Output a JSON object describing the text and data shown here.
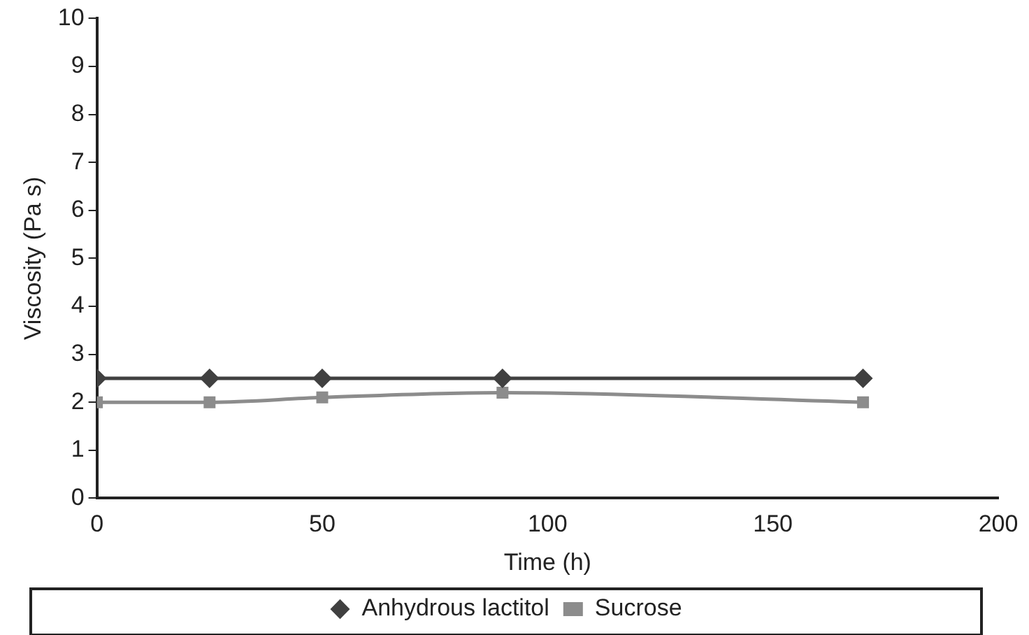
{
  "chart_data": {
    "type": "line",
    "xlabel": "Time (h)",
    "ylabel": "Viscosity (Pa s)",
    "x": [
      0,
      25,
      50,
      90,
      170
    ],
    "xlim": [
      0,
      200
    ],
    "xticks": [
      0,
      50,
      100,
      150,
      200
    ],
    "ylim": [
      0,
      10
    ],
    "yticks": [
      0,
      1,
      2,
      3,
      4,
      5,
      6,
      7,
      8,
      9,
      10
    ],
    "series": [
      {
        "name": "Anhydrous lactitol",
        "color": "#404040",
        "marker": "diamond",
        "values": [
          2.5,
          2.5,
          2.5,
          2.5,
          2.5
        ]
      },
      {
        "name": "Sucrose",
        "color": "#8c8c8c",
        "marker": "square",
        "values": [
          2.0,
          2.0,
          2.1,
          2.2,
          2.0
        ]
      }
    ],
    "grid": false,
    "legend": "bottom",
    "line_style": "solid"
  }
}
